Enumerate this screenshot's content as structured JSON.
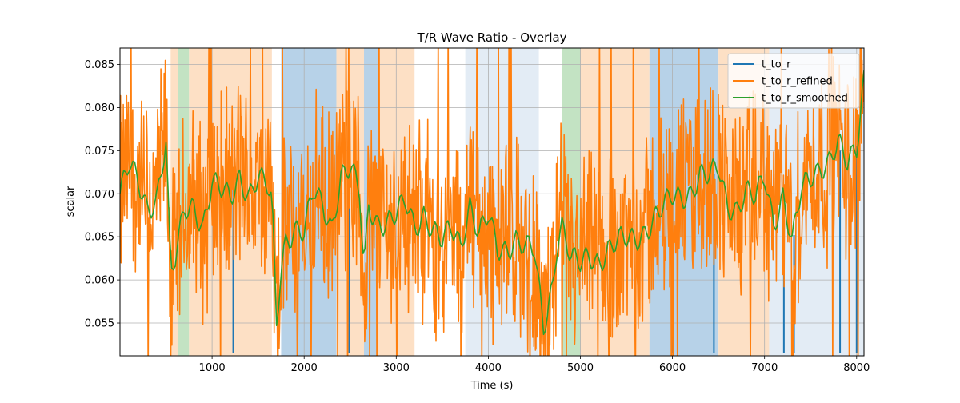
{
  "chart_data": {
    "type": "line",
    "title": "T/R Wave Ratio - Overlay",
    "xlabel": "Time (s)",
    "ylabel": "scalar",
    "xlim": [
      0,
      8080
    ],
    "ylim": [
      0.0512,
      0.0869
    ],
    "grid": true,
    "legend_position": "top-right",
    "x_ticks": [
      1000,
      2000,
      3000,
      4000,
      5000,
      6000,
      7000,
      8000
    ],
    "x_tick_labels": [
      "1000",
      "2000",
      "3000",
      "4000",
      "5000",
      "6000",
      "7000",
      "8000"
    ],
    "y_ticks": [
      0.055,
      0.06,
      0.065,
      0.07,
      0.075,
      0.08,
      0.085
    ],
    "y_tick_labels": [
      "0.055",
      "0.060",
      "0.065",
      "0.070",
      "0.075",
      "0.080",
      "0.085"
    ],
    "background_bands": [
      {
        "start": 0,
        "end": 550,
        "color": "#ffffff"
      },
      {
        "start": 550,
        "end": 630,
        "color": "#fde0c5"
      },
      {
        "start": 630,
        "end": 750,
        "color": "#c3e3c3"
      },
      {
        "start": 750,
        "end": 1650,
        "color": "#fde0c5"
      },
      {
        "start": 1650,
        "end": 1750,
        "color": "#ffffff"
      },
      {
        "start": 1750,
        "end": 2350,
        "color": "#b7d2e8"
      },
      {
        "start": 2350,
        "end": 2650,
        "color": "#fde0c5"
      },
      {
        "start": 2650,
        "end": 2800,
        "color": "#b7d2e8"
      },
      {
        "start": 2800,
        "end": 3200,
        "color": "#fde0c5"
      },
      {
        "start": 3200,
        "end": 3750,
        "color": "#ffffff"
      },
      {
        "start": 3750,
        "end": 4550,
        "color": "#e3ecf5"
      },
      {
        "start": 4550,
        "end": 4800,
        "color": "#ffffff"
      },
      {
        "start": 4800,
        "end": 5000,
        "color": "#c3e3c3"
      },
      {
        "start": 5000,
        "end": 5750,
        "color": "#fde0c5"
      },
      {
        "start": 5750,
        "end": 6500,
        "color": "#b7d2e8"
      },
      {
        "start": 6500,
        "end": 7050,
        "color": "#fde0c5"
      },
      {
        "start": 7050,
        "end": 8080,
        "color": "#e3ecf5"
      }
    ],
    "series": [
      {
        "name": "t_to_r",
        "color": "#1f77b4",
        "spikes": [
          {
            "x": 1230,
            "y": 0.0515
          },
          {
            "x": 2490,
            "y": 0.0515
          },
          {
            "x": 6000,
            "y": 0.0515
          },
          {
            "x": 6450,
            "y": 0.0515
          },
          {
            "x": 7210,
            "y": 0.0515
          },
          {
            "x": 7320,
            "y": 0.0515
          },
          {
            "x": 7820,
            "y": 0.0515
          },
          {
            "x": 8000,
            "y": 0.0515
          }
        ]
      },
      {
        "name": "t_to_r_refined",
        "color": "#ff7f0e",
        "noise_amplitude": 0.0105,
        "values_note_follows_smoothed": true
      },
      {
        "name": "t_to_r_smoothed",
        "color": "#2ca02c",
        "x": [
          0,
          100,
          200,
          300,
          400,
          500,
          550,
          600,
          700,
          800,
          900,
          1000,
          1100,
          1200,
          1300,
          1400,
          1500,
          1600,
          1650,
          1700,
          1750,
          1800,
          1900,
          2000,
          2100,
          2200,
          2300,
          2400,
          2500,
          2600,
          2650,
          2700,
          2800,
          2900,
          3000,
          3100,
          3200,
          3300,
          3400,
          3500,
          3600,
          3700,
          3800,
          3900,
          4000,
          4100,
          4200,
          4300,
          4400,
          4500,
          4600,
          4700,
          4750,
          4800,
          4900,
          5000,
          5100,
          5200,
          5300,
          5400,
          5500,
          5600,
          5700,
          5800,
          5900,
          6000,
          6100,
          6200,
          6300,
          6400,
          6500,
          6600,
          6700,
          6800,
          6900,
          7000,
          7100,
          7200,
          7300,
          7400,
          7500,
          7600,
          7700,
          7800,
          7900,
          8000,
          8080
        ],
        "values": [
          0.07,
          0.073,
          0.071,
          0.0685,
          0.07,
          0.076,
          0.06,
          0.062,
          0.068,
          0.069,
          0.0665,
          0.071,
          0.07,
          0.0695,
          0.0725,
          0.07,
          0.0715,
          0.0705,
          0.069,
          0.055,
          0.062,
          0.065,
          0.066,
          0.065,
          0.07,
          0.069,
          0.0665,
          0.072,
          0.0725,
          0.07,
          0.061,
          0.069,
          0.067,
          0.0665,
          0.067,
          0.069,
          0.0665,
          0.068,
          0.0655,
          0.064,
          0.066,
          0.0645,
          0.069,
          0.065,
          0.067,
          0.0635,
          0.064,
          0.065,
          0.0635,
          0.063,
          0.0545,
          0.06,
          0.065,
          0.0665,
          0.062,
          0.0615,
          0.063,
          0.0625,
          0.0635,
          0.064,
          0.0645,
          0.065,
          0.066,
          0.067,
          0.068,
          0.0695,
          0.07,
          0.0705,
          0.072,
          0.0715,
          0.073,
          0.069,
          0.0685,
          0.07,
          0.069,
          0.072,
          0.067,
          0.07,
          0.064,
          0.07,
          0.072,
          0.0735,
          0.074,
          0.0755,
          0.073,
          0.0755,
          0.084
        ]
      }
    ]
  }
}
